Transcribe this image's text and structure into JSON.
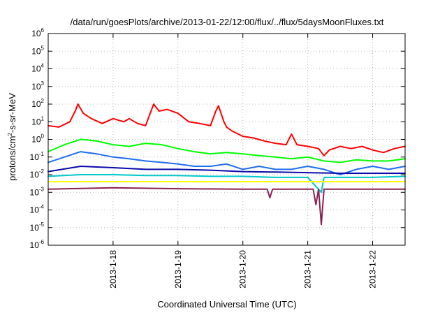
{
  "chart_data": {
    "type": "line",
    "title": "/data/run/goesPlots/archive/2013-01-22/12:00/flux/../flux/5daysMoonFluxes.txt",
    "xlabel": "Coordinated Universal Time (UTC)",
    "ylabel": {
      "prefix": "protons/cm",
      "exponent": "2",
      "suffix": "-s-sr-MeV"
    },
    "y_scale": "log",
    "ylim": [
      1e-06,
      1000000.0
    ],
    "y_ticks": [
      {
        "base": "10",
        "exp": "-6",
        "value": 1e-06
      },
      {
        "base": "10",
        "exp": "-5",
        "value": 1e-05
      },
      {
        "base": "10",
        "exp": "-4",
        "value": 0.0001
      },
      {
        "base": "10",
        "exp": "-3",
        "value": 0.001
      },
      {
        "base": "10",
        "exp": "-2",
        "value": 0.01
      },
      {
        "base": "10",
        "exp": "-1",
        "value": 0.1
      },
      {
        "base": "10",
        "exp": "0",
        "value": 1
      },
      {
        "base": "10",
        "exp": "1",
        "value": 10
      },
      {
        "base": "10",
        "exp": "2",
        "value": 100
      },
      {
        "base": "10",
        "exp": "3",
        "value": 1000
      },
      {
        "base": "10",
        "exp": "4",
        "value": 10000
      },
      {
        "base": "10",
        "exp": "5",
        "value": 100000
      },
      {
        "base": "10",
        "exp": "6",
        "value": 1000000
      }
    ],
    "xlim": [
      "2013-01-17T00:00",
      "2013-01-22T12:00"
    ],
    "x_ticks": [
      {
        "label": "2013-1-18",
        "value": "2013-01-18T00:00"
      },
      {
        "label": "2013-1-19",
        "value": "2013-01-19T00:00"
      },
      {
        "label": "2013-1-20",
        "value": "2013-01-20T00:00"
      },
      {
        "label": "2013-1-21",
        "value": "2013-01-21T00:00"
      },
      {
        "label": "2013-1-22",
        "value": "2013-01-22T00:00"
      }
    ],
    "grid": true,
    "legend": "none",
    "series": [
      {
        "color": "#ff0000",
        "x": [
          "2013-01-17T00:00",
          "2013-01-17T04:00",
          "2013-01-17T08:00",
          "2013-01-17T10:00",
          "2013-01-17T11:00",
          "2013-01-17T13:00",
          "2013-01-17T16:00",
          "2013-01-17T20:00",
          "2013-01-18T00:00",
          "2013-01-18T04:00",
          "2013-01-18T06:00",
          "2013-01-18T09:00",
          "2013-01-18T12:00",
          "2013-01-18T15:00",
          "2013-01-18T17:00",
          "2013-01-18T20:00",
          "2013-01-19T00:00",
          "2013-01-19T04:00",
          "2013-01-19T08:00",
          "2013-01-19T12:00",
          "2013-01-19T14:00",
          "2013-01-19T15:00",
          "2013-01-19T17:00",
          "2013-01-19T18:00",
          "2013-01-19T20:00",
          "2013-01-20T00:00",
          "2013-01-20T04:00",
          "2013-01-20T08:00",
          "2013-01-20T12:00",
          "2013-01-20T16:00",
          "2013-01-20T18:00",
          "2013-01-20T20:00",
          "2013-01-21T00:00",
          "2013-01-21T04:00",
          "2013-01-21T06:00",
          "2013-01-21T08:00",
          "2013-01-21T12:00",
          "2013-01-21T16:00",
          "2013-01-21T20:00",
          "2013-01-22T00:00",
          "2013-01-22T04:00",
          "2013-01-22T08:00",
          "2013-01-22T12:00"
        ],
        "y": [
          6,
          5,
          10,
          40,
          100,
          30,
          15,
          8,
          15,
          10,
          15,
          8,
          6,
          100,
          40,
          50,
          30,
          10,
          8,
          6,
          40,
          80,
          10,
          5,
          3,
          1.5,
          1.2,
          0.8,
          0.6,
          0.5,
          2,
          0.5,
          0.4,
          0.3,
          0.12,
          0.25,
          0.4,
          0.3,
          0.4,
          0.25,
          0.18,
          0.3,
          0.4
        ]
      },
      {
        "color": "#00ff00",
        "x": [
          "2013-01-17T00:00",
          "2013-01-17T06:00",
          "2013-01-17T12:00",
          "2013-01-17T18:00",
          "2013-01-18T00:00",
          "2013-01-18T06:00",
          "2013-01-18T12:00",
          "2013-01-18T18:00",
          "2013-01-19T00:00",
          "2013-01-19T06:00",
          "2013-01-19T12:00",
          "2013-01-19T18:00",
          "2013-01-20T00:00",
          "2013-01-20T06:00",
          "2013-01-20T12:00",
          "2013-01-20T18:00",
          "2013-01-21T00:00",
          "2013-01-21T06:00",
          "2013-01-21T12:00",
          "2013-01-21T18:00",
          "2013-01-22T00:00",
          "2013-01-22T06:00",
          "2013-01-22T12:00"
        ],
        "y": [
          0.2,
          0.5,
          1,
          0.8,
          0.5,
          0.4,
          0.6,
          0.5,
          0.3,
          0.2,
          0.15,
          0.18,
          0.15,
          0.12,
          0.1,
          0.08,
          0.1,
          0.06,
          0.05,
          0.07,
          0.06,
          0.06,
          0.08
        ]
      },
      {
        "color": "#1e6ef0",
        "x": [
          "2013-01-17T00:00",
          "2013-01-17T06:00",
          "2013-01-17T12:00",
          "2013-01-17T18:00",
          "2013-01-18T00:00",
          "2013-01-18T06:00",
          "2013-01-18T12:00",
          "2013-01-18T18:00",
          "2013-01-19T00:00",
          "2013-01-19T06:00",
          "2013-01-19T12:00",
          "2013-01-19T18:00",
          "2013-01-20T00:00",
          "2013-01-20T06:00",
          "2013-01-20T12:00",
          "2013-01-20T18:00",
          "2013-01-21T00:00",
          "2013-01-21T06:00",
          "2013-01-21T12:00",
          "2013-01-21T18:00",
          "2013-01-22T00:00",
          "2013-01-22T06:00",
          "2013-01-22T12:00"
        ],
        "y": [
          0.05,
          0.1,
          0.2,
          0.15,
          0.1,
          0.08,
          0.06,
          0.05,
          0.04,
          0.03,
          0.03,
          0.04,
          0.02,
          0.03,
          0.02,
          0.02,
          0.03,
          0.02,
          0.01,
          0.02,
          0.03,
          0.02,
          0.03
        ]
      },
      {
        "color": "#0a0aaa",
        "x": [
          "2013-01-17T00:00",
          "2013-01-17T12:00",
          "2013-01-18T00:00",
          "2013-01-18T12:00",
          "2013-01-19T00:00",
          "2013-01-19T12:00",
          "2013-01-20T00:00",
          "2013-01-20T12:00",
          "2013-01-21T00:00",
          "2013-01-21T12:00",
          "2013-01-22T00:00",
          "2013-01-22T12:00"
        ],
        "y": [
          0.015,
          0.03,
          0.025,
          0.02,
          0.02,
          0.018,
          0.015,
          0.014,
          0.013,
          0.012,
          0.012,
          0.012
        ]
      },
      {
        "color": "#00c8c8",
        "x": [
          "2013-01-17T00:00",
          "2013-01-17T12:00",
          "2013-01-18T00:00",
          "2013-01-18T12:00",
          "2013-01-19T00:00",
          "2013-01-19T12:00",
          "2013-01-20T00:00",
          "2013-01-20T12:00",
          "2013-01-21T00:00",
          "2013-01-21T05:00",
          "2013-01-21T06:00",
          "2013-01-21T12:00",
          "2013-01-22T00:00",
          "2013-01-22T12:00"
        ],
        "y": [
          0.008,
          0.01,
          0.01,
          0.009,
          0.009,
          0.008,
          0.008,
          0.007,
          0.007,
          0.001,
          0.007,
          0.007,
          0.007,
          0.008
        ]
      },
      {
        "color": "#ffff00",
        "x": [
          "2013-01-17T00:00",
          "2013-01-18T00:00",
          "2013-01-19T00:00",
          "2013-01-20T00:00",
          "2013-01-21T00:00",
          "2013-01-22T00:00",
          "2013-01-22T12:00"
        ],
        "y": [
          0.004,
          0.004,
          0.004,
          0.004,
          0.004,
          0.004,
          0.004
        ]
      },
      {
        "color": "#8b2252",
        "x": [
          "2013-01-17T00:00",
          "2013-01-18T00:00",
          "2013-01-19T00:00",
          "2013-01-20T00:00",
          "2013-01-20T09:00",
          "2013-01-20T10:00",
          "2013-01-20T11:00",
          "2013-01-21T00:00",
          "2013-01-21T02:00",
          "2013-01-21T03:00",
          "2013-01-21T04:00",
          "2013-01-21T05:00",
          "2013-01-21T06:00",
          "2013-01-21T07:00",
          "2013-01-22T00:00",
          "2013-01-22T12:00"
        ],
        "y": [
          0.0015,
          0.0018,
          0.0016,
          0.0015,
          0.0015,
          0.0005,
          0.0015,
          0.0015,
          0.0015,
          0.0002,
          0.0015,
          1.5e-05,
          0.0015,
          0.0015,
          0.0015,
          0.0015
        ]
      }
    ]
  }
}
